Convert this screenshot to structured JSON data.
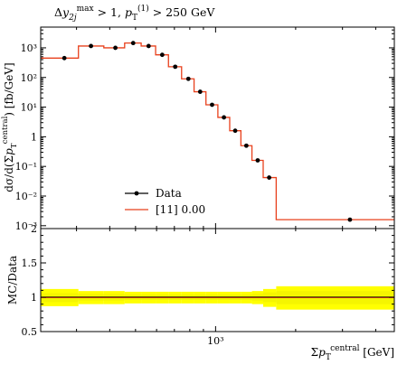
{
  "chart_data": [
    {
      "type": "line",
      "panel": "main",
      "title": "Δy_2j^max > 1, p_T^(1) > 250 GeV",
      "ylabel": "dσ/d(Σp_T^central) [fb/GeV]",
      "yscale": "log",
      "ylim": [
        0.0008,
        5000
      ],
      "xscale": "log",
      "xlim": [
        220,
        4700
      ],
      "y_ticks": [
        {
          "value": 0.001,
          "label": "10⁻³"
        },
        {
          "value": 0.01,
          "label": "10⁻²"
        },
        {
          "value": 0.1,
          "label": "10⁻¹"
        },
        {
          "value": 1,
          "label": "1"
        },
        {
          "value": 10,
          "label": "10¹"
        },
        {
          "value": 100,
          "label": "10²"
        },
        {
          "value": 1000,
          "label": "10³"
        }
      ],
      "legend": {
        "placement": "lower-left",
        "entries": [
          {
            "label": "Data",
            "style": "marker"
          },
          {
            "label": "[11] 0.00",
            "style": "line"
          }
        ]
      },
      "series": [
        {
          "name": "Data",
          "color": "#000000",
          "points": [
            {
              "x": 270,
              "y": 450
            },
            {
              "x": 340,
              "y": 1150
            },
            {
              "x": 420,
              "y": 1000
            },
            {
              "x": 490,
              "y": 1450
            },
            {
              "x": 560,
              "y": 1150
            },
            {
              "x": 630,
              "y": 580
            },
            {
              "x": 705,
              "y": 230
            },
            {
              "x": 790,
              "y": 90
            },
            {
              "x": 875,
              "y": 33
            },
            {
              "x": 970,
              "y": 12
            },
            {
              "x": 1075,
              "y": 4.5
            },
            {
              "x": 1185,
              "y": 1.6
            },
            {
              "x": 1305,
              "y": 0.5
            },
            {
              "x": 1440,
              "y": 0.16
            },
            {
              "x": 1590,
              "y": 0.042
            },
            {
              "x": 3200,
              "y": 0.0016
            }
          ]
        },
        {
          "name": "[11] 0.00",
          "color": "#e8401c",
          "bins": [
            {
              "lo": 220,
              "hi": 305,
              "y": 450
            },
            {
              "lo": 305,
              "hi": 380,
              "y": 1150
            },
            {
              "lo": 380,
              "hi": 455,
              "y": 1000
            },
            {
              "lo": 455,
              "hi": 525,
              "y": 1450
            },
            {
              "lo": 525,
              "hi": 595,
              "y": 1150
            },
            {
              "lo": 595,
              "hi": 665,
              "y": 580
            },
            {
              "lo": 665,
              "hi": 745,
              "y": 230
            },
            {
              "lo": 745,
              "hi": 830,
              "y": 90
            },
            {
              "lo": 830,
              "hi": 920,
              "y": 33
            },
            {
              "lo": 920,
              "hi": 1020,
              "y": 12
            },
            {
              "lo": 1020,
              "hi": 1130,
              "y": 4.5
            },
            {
              "lo": 1130,
              "hi": 1245,
              "y": 1.6
            },
            {
              "lo": 1245,
              "hi": 1370,
              "y": 0.5
            },
            {
              "lo": 1370,
              "hi": 1510,
              "y": 0.16
            },
            {
              "lo": 1510,
              "hi": 1690,
              "y": 0.042
            },
            {
              "lo": 1690,
              "hi": 4700,
              "y": 0.0016
            }
          ]
        }
      ]
    },
    {
      "type": "area",
      "panel": "ratio",
      "ylabel": "MC/Data",
      "xlabel": "Σp_T^central [GeV]",
      "xscale": "log",
      "xlim": [
        220,
        4700
      ],
      "ylim": [
        0.5,
        2.0
      ],
      "y_ticks": [
        {
          "value": 0.5,
          "label": "0.5"
        },
        {
          "value": 1,
          "label": "1"
        },
        {
          "value": 1.5,
          "label": "1.5"
        },
        {
          "value": 2,
          "label": "2"
        }
      ],
      "x_ticks": [
        {
          "value": 1000,
          "label": "10³"
        }
      ],
      "band_color": "#ffff00",
      "inner_band_color": "#f5f500",
      "bins": [
        {
          "lo": 220,
          "hi": 305,
          "outer": [
            0.87,
            1.12
          ],
          "inner": [
            0.93,
            1.06
          ]
        },
        {
          "lo": 305,
          "hi": 380,
          "outer": [
            0.9,
            1.09
          ],
          "inner": [
            0.95,
            1.05
          ]
        },
        {
          "lo": 380,
          "hi": 455,
          "outer": [
            0.9,
            1.09
          ],
          "inner": [
            0.95,
            1.05
          ]
        },
        {
          "lo": 455,
          "hi": 525,
          "outer": [
            0.91,
            1.08
          ],
          "inner": [
            0.96,
            1.04
          ]
        },
        {
          "lo": 525,
          "hi": 595,
          "outer": [
            0.91,
            1.08
          ],
          "inner": [
            0.96,
            1.04
          ]
        },
        {
          "lo": 595,
          "hi": 665,
          "outer": [
            0.91,
            1.08
          ],
          "inner": [
            0.96,
            1.04
          ]
        },
        {
          "lo": 665,
          "hi": 745,
          "outer": [
            0.91,
            1.08
          ],
          "inner": [
            0.96,
            1.04
          ]
        },
        {
          "lo": 745,
          "hi": 830,
          "outer": [
            0.91,
            1.08
          ],
          "inner": [
            0.96,
            1.04
          ]
        },
        {
          "lo": 830,
          "hi": 920,
          "outer": [
            0.91,
            1.08
          ],
          "inner": [
            0.96,
            1.04
          ]
        },
        {
          "lo": 920,
          "hi": 1020,
          "outer": [
            0.91,
            1.08
          ],
          "inner": [
            0.96,
            1.04
          ]
        },
        {
          "lo": 1020,
          "hi": 1130,
          "outer": [
            0.91,
            1.08
          ],
          "inner": [
            0.96,
            1.04
          ]
        },
        {
          "lo": 1130,
          "hi": 1245,
          "outer": [
            0.91,
            1.08
          ],
          "inner": [
            0.96,
            1.04
          ]
        },
        {
          "lo": 1245,
          "hi": 1370,
          "outer": [
            0.91,
            1.08
          ],
          "inner": [
            0.96,
            1.04
          ]
        },
        {
          "lo": 1370,
          "hi": 1510,
          "outer": [
            0.9,
            1.09
          ],
          "inner": [
            0.95,
            1.05
          ]
        },
        {
          "lo": 1510,
          "hi": 1690,
          "outer": [
            0.86,
            1.12
          ],
          "inner": [
            0.93,
            1.07
          ]
        },
        {
          "lo": 1690,
          "hi": 4700,
          "outer": [
            0.82,
            1.16
          ],
          "inner": [
            0.9,
            1.09
          ]
        }
      ],
      "ratio_line": 1.0
    }
  ]
}
